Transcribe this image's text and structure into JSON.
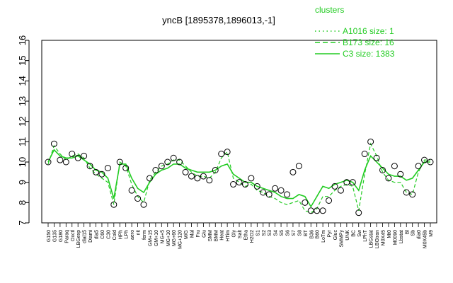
{
  "chart_data": {
    "type": "line",
    "title": "yncB [1895378,1896013,-1]",
    "xlabel": "",
    "ylabel": "",
    "ylim": [
      7,
      16
    ],
    "yticks": [
      7,
      8,
      9,
      10,
      11,
      12,
      13,
      14,
      15,
      16
    ],
    "grid": false,
    "legend": {
      "title": "clusters",
      "position": "top-right",
      "color": "#22cc22",
      "entries": [
        {
          "label": "A1016 size: 1",
          "style": "dotted"
        },
        {
          "label": "B173 size: 16",
          "style": "dashed"
        },
        {
          "label": "C3 size: 1383",
          "style": "solid"
        }
      ]
    },
    "x_tick_labels": [
      "G150",
      "G135",
      "G180",
      "Paraq",
      "Oxctl",
      "LBGexp",
      "dial15",
      "Diami",
      "dia5",
      "C60",
      "C30",
      "Cold",
      "HPh",
      "LPh",
      "aero",
      "nit",
      "ferm",
      "GM+15",
      "GM+10",
      "MG+5",
      "MG+10",
      "MG+60",
      "MG+120",
      "M/G",
      "Mal",
      "Fru",
      "Glu",
      "SMM",
      "BMM",
      "Heat",
      "HTim",
      "Gly",
      "Salt",
      "Etha",
      "H2O2",
      "S1",
      "S2",
      "S3",
      "S4",
      "S5",
      "S6",
      "S7",
      "S8",
      "BT",
      "B36",
      "B60",
      "LoTm",
      "Pyr",
      "Gluc",
      "SMMPy",
      "UNK",
      "BC",
      "Sw",
      "LPhT",
      "LBGstat",
      "LBGtran",
      "M0X45",
      "Mt0",
      "M0090",
      "Lbstat",
      "Bl",
      "Sb",
      "dia0",
      "M0X45b",
      "M9"
    ],
    "series": [
      {
        "style": "solid",
        "role": "cluster-mean",
        "values": [
          10.0,
          10.6,
          10.3,
          10.2,
          10.2,
          10.3,
          10.1,
          9.9,
          9.6,
          9.5,
          9.2,
          8.2,
          9.9,
          9.9,
          9.2,
          8.7,
          8.5,
          9.0,
          9.4,
          9.6,
          9.7,
          9.9,
          9.9,
          9.7,
          9.6,
          9.5,
          9.5,
          9.5,
          9.6,
          9.8,
          9.9,
          9.4,
          9.2,
          9.0,
          9.0,
          8.8,
          8.7,
          8.6,
          8.5,
          8.3,
          8.2,
          8.2,
          8.4,
          8.3,
          7.8,
          8.3,
          8.8,
          8.7,
          8.9,
          9.0,
          9.1,
          9.0,
          8.6,
          9.6,
          10.3,
          10.0,
          9.7,
          9.4,
          9.3,
          9.3,
          9.1,
          9.2,
          9.6,
          10.0,
          10.0
        ]
      },
      {
        "style": "dashed",
        "role": "cluster-mean",
        "values": [
          9.9,
          10.8,
          10.4,
          10.1,
          10.3,
          10.4,
          10.2,
          9.7,
          9.4,
          9.2,
          9.0,
          7.9,
          10.0,
          9.8,
          8.9,
          8.3,
          8.0,
          9.1,
          9.5,
          9.8,
          9.9,
          10.1,
          10.1,
          9.8,
          9.5,
          9.3,
          9.3,
          9.2,
          9.5,
          10.2,
          10.5,
          9.2,
          9.0,
          8.8,
          8.9,
          8.6,
          8.5,
          8.3,
          8.2,
          8.0,
          7.9,
          8.0,
          8.1,
          7.6,
          7.5,
          7.7,
          8.3,
          8.3,
          8.6,
          8.8,
          8.9,
          8.8,
          7.6,
          9.4,
          10.9,
          10.3,
          9.5,
          9.1,
          9.0,
          9.0,
          8.5,
          8.4,
          9.5,
          10.1,
          10.1
        ]
      },
      {
        "style": "points",
        "role": "sample-values",
        "values": [
          10.0,
          10.9,
          10.1,
          10.0,
          10.4,
          10.2,
          10.3,
          9.8,
          9.5,
          9.4,
          9.7,
          7.9,
          10.0,
          9.7,
          8.6,
          8.2,
          7.9,
          9.2,
          9.6,
          9.8,
          10.0,
          10.2,
          10.0,
          9.5,
          9.3,
          9.2,
          9.3,
          9.1,
          9.6,
          10.4,
          10.5,
          8.9,
          9.0,
          8.9,
          9.2,
          8.8,
          8.5,
          8.4,
          8.7,
          8.6,
          8.4,
          9.5,
          9.8,
          8.0,
          7.6,
          7.6,
          7.6,
          8.1,
          8.8,
          8.6,
          9.0,
          9.0,
          7.5,
          10.4,
          11.0,
          10.2,
          9.6,
          9.2,
          9.8,
          9.4,
          8.5,
          8.4,
          9.8,
          10.1,
          10.0
        ]
      }
    ]
  }
}
